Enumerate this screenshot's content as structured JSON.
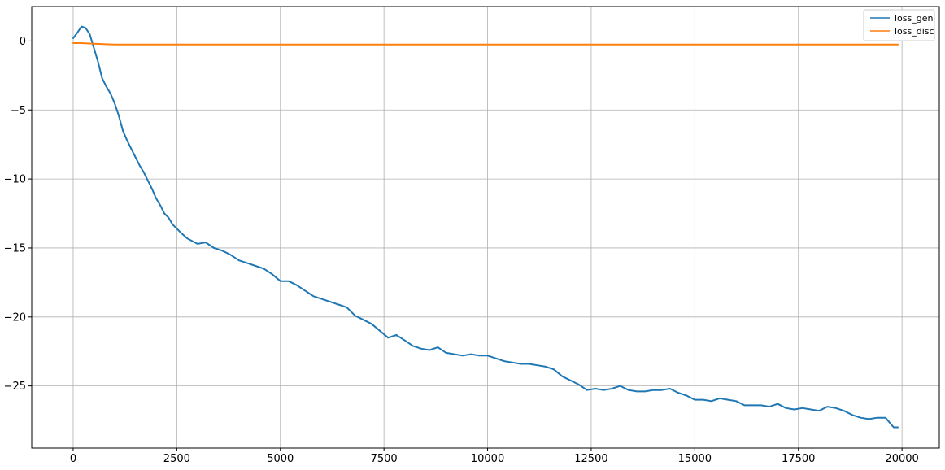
{
  "chart_data": {
    "type": "line",
    "title": "",
    "xlabel": "",
    "ylabel": "",
    "xlim": [
      -1000,
      20900
    ],
    "ylim": [
      -29.5,
      2.5
    ],
    "grid": true,
    "legend_position": "top-right",
    "x_ticks": [
      0,
      2500,
      5000,
      7500,
      10000,
      12500,
      15000,
      17500,
      20000
    ],
    "x_tick_labels": [
      "0",
      "2500",
      "5000",
      "7500",
      "10000",
      "12500",
      "15000",
      "17500",
      "20000"
    ],
    "y_ticks": [
      0,
      -5,
      -10,
      -15,
      -20,
      -25
    ],
    "y_tick_labels": [
      "0",
      "−5",
      "−10",
      "−15",
      "−20",
      "−25"
    ],
    "series": [
      {
        "name": "loss_gen",
        "color": "#1f77b4",
        "points": [
          [
            0,
            0.2
          ],
          [
            100,
            0.6
          ],
          [
            200,
            1.05
          ],
          [
            300,
            0.95
          ],
          [
            400,
            0.5
          ],
          [
            500,
            -0.5
          ],
          [
            600,
            -1.5
          ],
          [
            700,
            -2.7
          ],
          [
            800,
            -3.3
          ],
          [
            900,
            -3.8
          ],
          [
            1000,
            -4.5
          ],
          [
            1100,
            -5.4
          ],
          [
            1200,
            -6.5
          ],
          [
            1300,
            -7.2
          ],
          [
            1400,
            -7.8
          ],
          [
            1500,
            -8.4
          ],
          [
            1600,
            -9.0
          ],
          [
            1700,
            -9.5
          ],
          [
            1800,
            -10.1
          ],
          [
            1900,
            -10.7
          ],
          [
            2000,
            -11.4
          ],
          [
            2100,
            -11.9
          ],
          [
            2200,
            -12.5
          ],
          [
            2300,
            -12.8
          ],
          [
            2400,
            -13.3
          ],
          [
            2500,
            -13.6
          ],
          [
            2600,
            -13.9
          ],
          [
            2750,
            -14.3
          ],
          [
            3000,
            -14.7
          ],
          [
            3200,
            -14.6
          ],
          [
            3400,
            -15.0
          ],
          [
            3600,
            -15.2
          ],
          [
            3800,
            -15.5
          ],
          [
            4000,
            -15.9
          ],
          [
            4200,
            -16.1
          ],
          [
            4400,
            -16.3
          ],
          [
            4600,
            -16.5
          ],
          [
            4800,
            -16.9
          ],
          [
            5000,
            -17.4
          ],
          [
            5200,
            -17.4
          ],
          [
            5400,
            -17.7
          ],
          [
            5600,
            -18.1
          ],
          [
            5800,
            -18.5
          ],
          [
            6000,
            -18.7
          ],
          [
            6200,
            -18.9
          ],
          [
            6400,
            -19.1
          ],
          [
            6600,
            -19.3
          ],
          [
            6800,
            -19.9
          ],
          [
            7000,
            -20.2
          ],
          [
            7200,
            -20.5
          ],
          [
            7400,
            -21.0
          ],
          [
            7600,
            -21.5
          ],
          [
            7800,
            -21.3
          ],
          [
            8000,
            -21.7
          ],
          [
            8200,
            -22.1
          ],
          [
            8400,
            -22.3
          ],
          [
            8600,
            -22.4
          ],
          [
            8800,
            -22.2
          ],
          [
            9000,
            -22.6
          ],
          [
            9200,
            -22.7
          ],
          [
            9400,
            -22.8
          ],
          [
            9600,
            -22.7
          ],
          [
            9800,
            -22.8
          ],
          [
            10000,
            -22.8
          ],
          [
            10200,
            -23.0
          ],
          [
            10400,
            -23.2
          ],
          [
            10600,
            -23.3
          ],
          [
            10800,
            -23.4
          ],
          [
            11000,
            -23.4
          ],
          [
            11200,
            -23.5
          ],
          [
            11400,
            -23.6
          ],
          [
            11600,
            -23.8
          ],
          [
            11800,
            -24.3
          ],
          [
            12000,
            -24.6
          ],
          [
            12200,
            -24.9
          ],
          [
            12400,
            -25.3
          ],
          [
            12600,
            -25.2
          ],
          [
            12800,
            -25.3
          ],
          [
            13000,
            -25.2
          ],
          [
            13200,
            -25.0
          ],
          [
            13400,
            -25.3
          ],
          [
            13600,
            -25.4
          ],
          [
            13800,
            -25.4
          ],
          [
            14000,
            -25.3
          ],
          [
            14200,
            -25.3
          ],
          [
            14400,
            -25.2
          ],
          [
            14600,
            -25.5
          ],
          [
            14800,
            -25.7
          ],
          [
            15000,
            -26.0
          ],
          [
            15200,
            -26.0
          ],
          [
            15400,
            -26.1
          ],
          [
            15600,
            -25.9
          ],
          [
            15800,
            -26.0
          ],
          [
            16000,
            -26.1
          ],
          [
            16200,
            -26.4
          ],
          [
            16400,
            -26.4
          ],
          [
            16600,
            -26.4
          ],
          [
            16800,
            -26.5
          ],
          [
            17000,
            -26.3
          ],
          [
            17200,
            -26.6
          ],
          [
            17400,
            -26.7
          ],
          [
            17600,
            -26.6
          ],
          [
            17800,
            -26.7
          ],
          [
            18000,
            -26.8
          ],
          [
            18200,
            -26.5
          ],
          [
            18400,
            -26.6
          ],
          [
            18600,
            -26.8
          ],
          [
            18800,
            -27.1
          ],
          [
            19000,
            -27.3
          ],
          [
            19200,
            -27.4
          ],
          [
            19400,
            -27.3
          ],
          [
            19600,
            -27.3
          ],
          [
            19800,
            -28.0
          ],
          [
            19900,
            -28.0
          ]
        ]
      },
      {
        "name": "loss_disc",
        "color": "#ff7f0e",
        "points": [
          [
            0,
            -0.15
          ],
          [
            200,
            -0.15
          ],
          [
            500,
            -0.2
          ],
          [
            1000,
            -0.25
          ],
          [
            2000,
            -0.25
          ],
          [
            4000,
            -0.25
          ],
          [
            6000,
            -0.25
          ],
          [
            8000,
            -0.25
          ],
          [
            10000,
            -0.25
          ],
          [
            12000,
            -0.25
          ],
          [
            14000,
            -0.25
          ],
          [
            16000,
            -0.25
          ],
          [
            18000,
            -0.25
          ],
          [
            19900,
            -0.25
          ]
        ]
      }
    ]
  }
}
